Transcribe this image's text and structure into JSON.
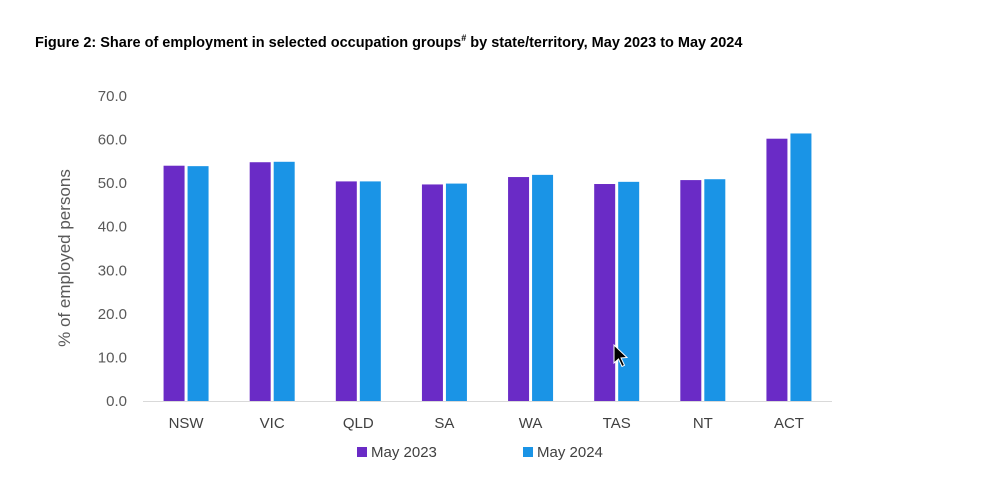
{
  "title": {
    "main": "Figure 2: Share of employment in selected occupation groups",
    "mark": "#",
    "rest": " by state/territory, May 2023 to May 2024"
  },
  "chart_data": {
    "type": "bar",
    "categories": [
      "NSW",
      "VIC",
      "QLD",
      "SA",
      "WA",
      "TAS",
      "NT",
      "ACT"
    ],
    "series": [
      {
        "name": "May 2023",
        "color": "#6a2bc6",
        "values": [
          54.0,
          54.8,
          50.4,
          49.7,
          51.4,
          49.8,
          50.7,
          60.2
        ]
      },
      {
        "name": "May 2024",
        "color": "#1a94e6",
        "values": [
          53.9,
          54.9,
          50.4,
          49.9,
          51.9,
          50.3,
          50.9,
          61.4
        ]
      }
    ],
    "ylabel": "% of employed persons",
    "ylim": [
      0,
      70
    ],
    "yticks": [
      "0.0",
      "10.0",
      "20.0",
      "30.0",
      "40.0",
      "50.0",
      "60.0",
      "70.0"
    ],
    "legend_position": "bottom",
    "grid": false
  }
}
